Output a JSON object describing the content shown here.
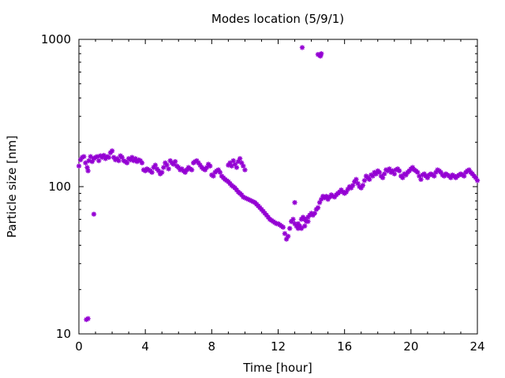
{
  "chart_data": {
    "type": "scatter",
    "title": "Modes location (5/9/1)",
    "xlabel": "Time [hour]",
    "ylabel": "Particle size [nm]",
    "xlim": [
      0,
      24
    ],
    "ylim": [
      10,
      1000
    ],
    "yscale": "log",
    "xticks": [
      0,
      4,
      8,
      12,
      16,
      20,
      24
    ],
    "xtick_labels": [
      "0",
      "4",
      "8",
      "12",
      "16",
      "20",
      "24"
    ],
    "yticks": [
      10,
      100,
      1000
    ],
    "ytick_labels": [
      "10",
      "100",
      "1000"
    ],
    "grid": false,
    "marker_color": "#9400D3",
    "series": [
      {
        "points": [
          [
            0.0,
            138
          ],
          [
            0.1,
            152
          ],
          [
            0.2,
            158
          ],
          [
            0.3,
            160
          ],
          [
            0.4,
            145
          ],
          [
            0.5,
            135
          ],
          [
            0.55,
            128
          ],
          [
            0.6,
            150
          ],
          [
            0.7,
            160
          ],
          [
            0.8,
            148
          ],
          [
            0.9,
            155
          ],
          [
            1.0,
            158
          ],
          [
            1.1,
            160
          ],
          [
            1.2,
            150
          ],
          [
            1.3,
            162
          ],
          [
            1.4,
            158
          ],
          [
            1.5,
            163
          ],
          [
            1.6,
            155
          ],
          [
            1.7,
            160
          ],
          [
            1.8,
            158
          ],
          [
            1.9,
            170
          ],
          [
            2.0,
            175
          ],
          [
            2.1,
            158
          ],
          [
            2.2,
            152
          ],
          [
            2.3,
            155
          ],
          [
            2.4,
            150
          ],
          [
            2.5,
            162
          ],
          [
            2.6,
            158
          ],
          [
            2.7,
            150
          ],
          [
            2.8,
            148
          ],
          [
            2.9,
            145
          ],
          [
            3.0,
            155
          ],
          [
            3.1,
            152
          ],
          [
            3.2,
            158
          ],
          [
            3.3,
            150
          ],
          [
            3.4,
            155
          ],
          [
            3.5,
            148
          ],
          [
            3.6,
            152
          ],
          [
            3.7,
            150
          ],
          [
            3.8,
            145
          ],
          [
            3.9,
            130
          ],
          [
            4.0,
            128
          ],
          [
            4.1,
            132
          ],
          [
            4.2,
            130
          ],
          [
            4.3,
            128
          ],
          [
            4.4,
            125
          ],
          [
            4.5,
            135
          ],
          [
            4.6,
            140
          ],
          [
            4.7,
            132
          ],
          [
            4.8,
            128
          ],
          [
            4.9,
            122
          ],
          [
            5.0,
            125
          ],
          [
            5.1,
            135
          ],
          [
            5.2,
            145
          ],
          [
            5.3,
            140
          ],
          [
            5.4,
            132
          ],
          [
            5.5,
            150
          ],
          [
            5.6,
            145
          ],
          [
            5.7,
            142
          ],
          [
            5.8,
            148
          ],
          [
            5.9,
            138
          ],
          [
            6.0,
            135
          ],
          [
            6.1,
            130
          ],
          [
            6.2,
            132
          ],
          [
            6.3,
            128
          ],
          [
            6.4,
            125
          ],
          [
            6.5,
            130
          ],
          [
            6.6,
            135
          ],
          [
            6.7,
            132
          ],
          [
            6.8,
            130
          ],
          [
            6.9,
            145
          ],
          [
            7.0,
            148
          ],
          [
            7.1,
            150
          ],
          [
            7.2,
            145
          ],
          [
            7.3,
            140
          ],
          [
            7.4,
            135
          ],
          [
            7.5,
            132
          ],
          [
            7.6,
            130
          ],
          [
            7.7,
            135
          ],
          [
            7.8,
            142
          ],
          [
            7.9,
            138
          ],
          [
            8.0,
            120
          ],
          [
            8.1,
            118
          ],
          [
            8.2,
            125
          ],
          [
            8.3,
            128
          ],
          [
            8.4,
            130
          ],
          [
            8.5,
            125
          ],
          [
            8.6,
            118
          ],
          [
            8.7,
            115
          ],
          [
            8.8,
            112
          ],
          [
            8.9,
            110
          ],
          [
            9.0,
            108
          ],
          [
            9.1,
            105
          ],
          [
            9.2,
            102
          ],
          [
            9.3,
            100
          ],
          [
            9.4,
            98
          ],
          [
            9.5,
            95
          ],
          [
            9.6,
            92
          ],
          [
            9.7,
            90
          ],
          [
            9.8,
            88
          ],
          [
            9.9,
            85
          ],
          [
            10.0,
            84
          ],
          [
            10.1,
            83
          ],
          [
            10.2,
            82
          ],
          [
            10.3,
            81
          ],
          [
            10.4,
            80
          ],
          [
            10.5,
            79
          ],
          [
            10.6,
            78
          ],
          [
            10.7,
            76
          ],
          [
            10.8,
            74
          ],
          [
            10.9,
            72
          ],
          [
            11.0,
            70
          ],
          [
            11.1,
            68
          ],
          [
            11.2,
            66
          ],
          [
            11.3,
            64
          ],
          [
            11.4,
            62
          ],
          [
            11.5,
            60
          ],
          [
            11.6,
            59
          ],
          [
            11.7,
            58
          ],
          [
            11.8,
            57
          ],
          [
            11.9,
            56
          ],
          [
            12.0,
            56
          ],
          [
            12.1,
            55
          ],
          [
            12.2,
            54
          ],
          [
            12.3,
            53
          ],
          [
            12.4,
            48
          ],
          [
            12.5,
            44
          ],
          [
            12.6,
            46
          ],
          [
            12.7,
            52
          ],
          [
            12.8,
            58
          ],
          [
            12.9,
            60
          ],
          [
            13.0,
            56
          ],
          [
            13.1,
            54
          ],
          [
            13.2,
            52
          ],
          [
            13.3,
            54
          ],
          [
            13.4,
            60
          ],
          [
            13.5,
            62
          ],
          [
            13.6,
            60
          ],
          [
            13.7,
            58
          ],
          [
            13.8,
            62
          ],
          [
            13.9,
            64
          ],
          [
            14.0,
            66
          ],
          [
            14.1,
            64
          ],
          [
            14.2,
            66
          ],
          [
            14.3,
            70
          ],
          [
            14.4,
            72
          ],
          [
            14.5,
            78
          ],
          [
            14.6,
            82
          ],
          [
            14.7,
            86
          ],
          [
            14.8,
            84
          ],
          [
            14.9,
            86
          ],
          [
            15.0,
            82
          ],
          [
            15.1,
            85
          ],
          [
            15.2,
            88
          ],
          [
            15.3,
            86
          ],
          [
            15.4,
            85
          ],
          [
            15.5,
            88
          ],
          [
            15.6,
            90
          ],
          [
            15.7,
            92
          ],
          [
            15.8,
            95
          ],
          [
            15.9,
            92
          ],
          [
            16.0,
            90
          ],
          [
            16.1,
            92
          ],
          [
            16.2,
            96
          ],
          [
            16.3,
            100
          ],
          [
            16.4,
            98
          ],
          [
            16.5,
            102
          ],
          [
            16.6,
            108
          ],
          [
            16.7,
            112
          ],
          [
            16.8,
            105
          ],
          [
            16.9,
            100
          ],
          [
            17.0,
            98
          ],
          [
            17.1,
            102
          ],
          [
            17.2,
            110
          ],
          [
            17.3,
            118
          ],
          [
            17.4,
            115
          ],
          [
            17.5,
            112
          ],
          [
            17.6,
            120
          ],
          [
            17.7,
            118
          ],
          [
            17.8,
            125
          ],
          [
            17.9,
            122
          ],
          [
            18.0,
            128
          ],
          [
            18.1,
            125
          ],
          [
            18.2,
            118
          ],
          [
            18.3,
            115
          ],
          [
            18.4,
            122
          ],
          [
            18.5,
            130
          ],
          [
            18.6,
            128
          ],
          [
            18.7,
            132
          ],
          [
            18.8,
            125
          ],
          [
            18.9,
            128
          ],
          [
            19.0,
            122
          ],
          [
            19.1,
            130
          ],
          [
            19.2,
            132
          ],
          [
            19.3,
            128
          ],
          [
            19.4,
            118
          ],
          [
            19.5,
            115
          ],
          [
            19.6,
            122
          ],
          [
            19.7,
            120
          ],
          [
            19.8,
            125
          ],
          [
            19.9,
            128
          ],
          [
            20.0,
            132
          ],
          [
            20.1,
            135
          ],
          [
            20.2,
            130
          ],
          [
            20.3,
            128
          ],
          [
            20.4,
            125
          ],
          [
            20.5,
            118
          ],
          [
            20.6,
            112
          ],
          [
            20.7,
            120
          ],
          [
            20.8,
            122
          ],
          [
            20.9,
            118
          ],
          [
            21.0,
            115
          ],
          [
            21.1,
            120
          ],
          [
            21.2,
            122
          ],
          [
            21.3,
            120
          ],
          [
            21.4,
            118
          ],
          [
            21.5,
            125
          ],
          [
            21.6,
            130
          ],
          [
            21.7,
            128
          ],
          [
            21.8,
            125
          ],
          [
            21.9,
            120
          ],
          [
            22.0,
            118
          ],
          [
            22.1,
            122
          ],
          [
            22.2,
            120
          ],
          [
            22.3,
            118
          ],
          [
            22.4,
            115
          ],
          [
            22.5,
            120
          ],
          [
            22.6,
            118
          ],
          [
            22.7,
            115
          ],
          [
            22.8,
            118
          ],
          [
            22.9,
            120
          ],
          [
            23.0,
            122
          ],
          [
            23.1,
            120
          ],
          [
            23.2,
            118
          ],
          [
            23.3,
            125
          ],
          [
            23.4,
            128
          ],
          [
            23.5,
            130
          ],
          [
            23.6,
            125
          ],
          [
            23.7,
            122
          ],
          [
            23.8,
            118
          ],
          [
            23.9,
            115
          ],
          [
            24.0,
            110
          ],
          [
            9.0,
            140
          ],
          [
            9.1,
            145
          ],
          [
            9.2,
            138
          ],
          [
            9.3,
            150
          ],
          [
            9.4,
            142
          ],
          [
            9.5,
            135
          ],
          [
            9.6,
            148
          ],
          [
            9.7,
            155
          ],
          [
            9.8,
            145
          ],
          [
            9.9,
            138
          ],
          [
            10.0,
            130
          ],
          [
            12.8,
            58
          ],
          [
            13.0,
            78
          ],
          [
            13.2,
            56
          ],
          [
            13.4,
            52
          ],
          [
            13.6,
            54
          ],
          [
            13.8,
            58
          ],
          [
            0.9,
            65
          ],
          [
            0.45,
            12.5
          ],
          [
            0.55,
            12.7
          ],
          [
            13.45,
            880
          ],
          [
            14.4,
            790
          ],
          [
            14.5,
            780
          ],
          [
            14.6,
            800
          ],
          [
            14.55,
            770
          ]
        ]
      }
    ]
  }
}
